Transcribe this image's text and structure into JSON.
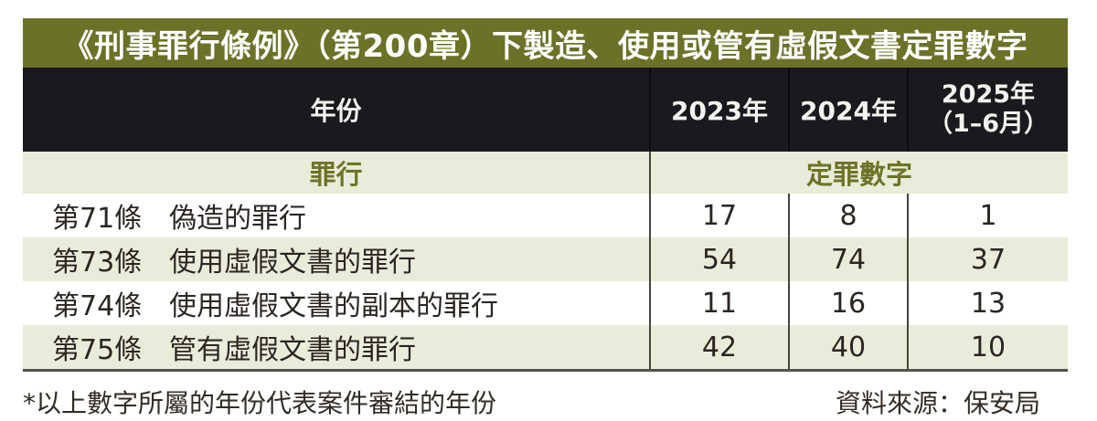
{
  "title": "《刑事罪行條例》（第200章）下製造、使用或管有虛假文書定罪數字",
  "header": {
    "year_label": "年份",
    "col1": "2023年",
    "col2": "2024年",
    "col3_line1": "2025年",
    "col3_line2": "（1–6月）"
  },
  "subheader": {
    "offence_label": "罪行",
    "conviction_label": "定罪數字"
  },
  "rows": [
    {
      "article": "第71條",
      "offence": "偽造的罪行",
      "v1": "17",
      "v2": "8",
      "v3": "1"
    },
    {
      "article": "第73條",
      "offence": "使用虛假文書的罪行",
      "v1": "54",
      "v2": "74",
      "v3": "37"
    },
    {
      "article": "第74條",
      "offence": "使用虛假文書的副本的罪行",
      "v1": "11",
      "v2": "16",
      "v3": "13"
    },
    {
      "article": "第75條",
      "offence": "管有虛假文書的罪行",
      "v1": "42",
      "v2": "40",
      "v3": "10"
    }
  ],
  "footer": {
    "note": "*以上數字所屬的年份代表案件審結的年份",
    "source": "資料來源：保安局"
  },
  "colors": {
    "title_bg": "#6b7228",
    "header_bg": "#1b191d",
    "row_alt_bg": "#e9ecd9",
    "subheader_text": "#6d7428",
    "body_text": "#2b2522"
  },
  "chart_data": {
    "type": "table",
    "title": "《刑事罪行條例》（第200章）下製造、使用或管有虛假文書定罪數字",
    "categories": [
      "2023年",
      "2024年",
      "2025年（1–6月）"
    ],
    "series": [
      {
        "name": "第71條 偽造的罪行",
        "values": [
          17,
          8,
          1
        ]
      },
      {
        "name": "第73條 使用虛假文書的罪行",
        "values": [
          54,
          74,
          37
        ]
      },
      {
        "name": "第74條 使用虛假文書的副本的罪行",
        "values": [
          11,
          16,
          13
        ]
      },
      {
        "name": "第75條 管有虛假文書的罪行",
        "values": [
          42,
          40,
          10
        ]
      }
    ],
    "value_label": "定罪數字",
    "row_axis_label": "罪行",
    "column_axis_label": "年份",
    "note": "*以上數字所屬的年份代表案件審結的年份",
    "source": "資料來源：保安局"
  }
}
